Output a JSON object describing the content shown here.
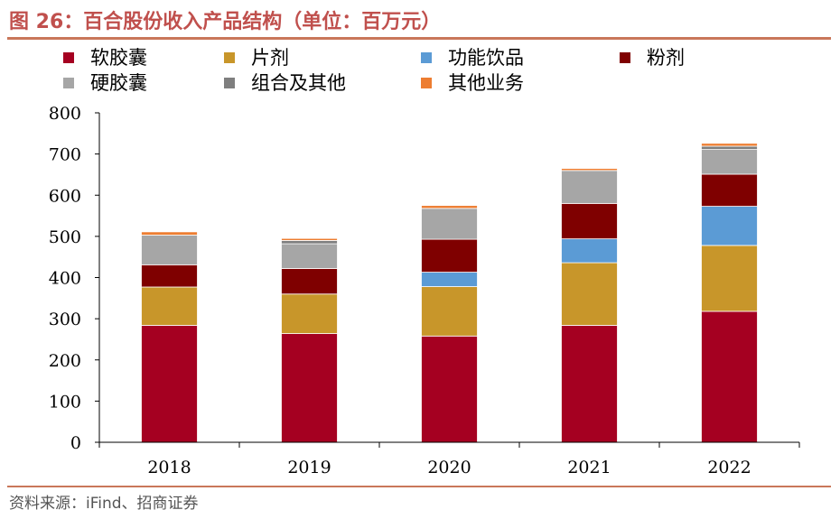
{
  "figure": {
    "title": "图 26：百合股份收入产品结构（单位：百万元）",
    "source": "资料来源：iFind、招商证券"
  },
  "chart_data": {
    "type": "bar",
    "stacked": true,
    "title": "图 26：百合股份收入产品结构（单位：百万元）",
    "xlabel": "",
    "ylabel": "",
    "ylim": [
      0,
      800
    ],
    "yticks": [
      0,
      100,
      200,
      300,
      400,
      500,
      600,
      700,
      800
    ],
    "categories": [
      "2018",
      "2019",
      "2020",
      "2021",
      "2022"
    ],
    "legend_position": "top",
    "series": [
      {
        "name": "软胶囊",
        "color": "#a50021",
        "values": [
          284,
          264,
          258,
          284,
          318
        ]
      },
      {
        "name": "片剂",
        "color": "#c8962a",
        "values": [
          93,
          96,
          120,
          152,
          160
        ]
      },
      {
        "name": "功能饮品",
        "color": "#5b9bd5",
        "values": [
          0,
          0,
          35,
          58,
          95
        ]
      },
      {
        "name": "粉剂",
        "color": "#7f0000",
        "values": [
          54,
          62,
          80,
          86,
          78
        ]
      },
      {
        "name": "硬胶囊",
        "color": "#a6a6a6",
        "values": [
          72,
          60,
          75,
          80,
          60
        ]
      },
      {
        "name": "组合及其他",
        "color": "#7f7f7f",
        "values": [
          0,
          8,
          0,
          0,
          8
        ]
      },
      {
        "name": "其他业务",
        "color": "#ed7d31",
        "values": [
          8,
          5,
          7,
          5,
          7
        ]
      }
    ]
  }
}
